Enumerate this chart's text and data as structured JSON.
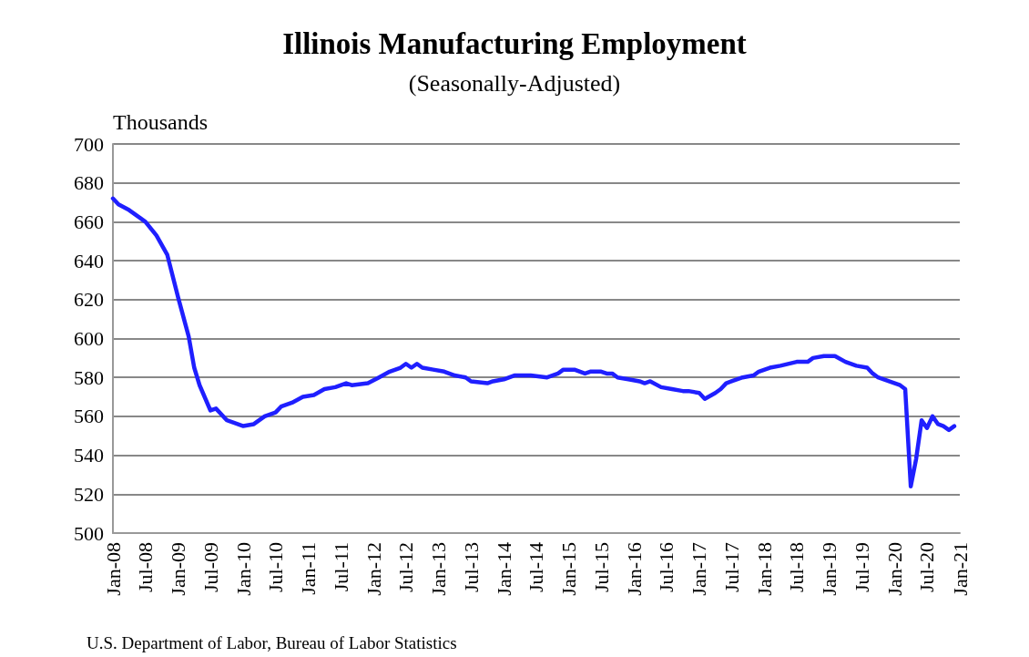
{
  "chart_data": {
    "type": "line",
    "title": "Illinois Manufacturing Employment",
    "subtitle": "(Seasonally-Adjusted)",
    "ylabel": "Thousands",
    "annotations": [
      "U.S. Department of Labor, Bureau of Labor Statistics"
    ],
    "x": [
      "2008-01",
      "2008-02",
      "2008-04",
      "2008-06",
      "2008-07",
      "2008-09",
      "2008-11",
      "2009-01",
      "2009-03",
      "2009-04",
      "2009-05",
      "2009-07",
      "2009-08",
      "2009-10",
      "2010-01",
      "2010-03",
      "2010-05",
      "2010-07",
      "2010-08",
      "2010-10",
      "2010-12",
      "2011-02",
      "2011-04",
      "2011-06",
      "2011-08",
      "2011-09",
      "2011-12",
      "2012-02",
      "2012-04",
      "2012-06",
      "2012-07",
      "2012-08",
      "2012-09",
      "2012-10",
      "2012-12",
      "2013-02",
      "2013-04",
      "2013-06",
      "2013-07",
      "2013-10",
      "2013-11",
      "2014-01",
      "2014-03",
      "2014-06",
      "2014-09",
      "2014-11",
      "2014-12",
      "2015-02",
      "2015-04",
      "2015-05",
      "2015-07",
      "2015-08",
      "2015-09",
      "2015-10",
      "2015-12",
      "2016-02",
      "2016-03",
      "2016-04",
      "2016-06",
      "2016-08",
      "2016-10",
      "2016-11",
      "2017-01",
      "2017-02",
      "2017-04",
      "2017-05",
      "2017-06",
      "2017-07",
      "2017-09",
      "2017-11",
      "2017-12",
      "2018-02",
      "2018-04",
      "2018-07",
      "2018-09",
      "2018-10",
      "2018-12",
      "2019-02",
      "2019-04",
      "2019-06",
      "2019-08",
      "2019-09",
      "2019-10",
      "2019-12",
      "2020-02",
      "2020-03",
      "2020-04",
      "2020-05",
      "2020-06",
      "2020-07",
      "2020-08",
      "2020-09",
      "2020-10",
      "2020-11",
      "2020-12"
    ],
    "series": [
      {
        "color": "#1f1fff",
        "values": [
          672,
          669,
          666,
          662,
          660,
          653,
          643,
          621,
          601,
          585,
          576,
          563,
          564,
          558,
          555,
          556,
          560,
          562,
          565,
          567,
          570,
          571,
          574,
          575,
          577,
          576,
          577,
          580,
          583,
          585,
          587,
          585,
          587,
          585,
          584,
          583,
          581,
          580,
          578,
          577,
          578,
          579,
          581,
          581,
          580,
          582,
          584,
          584,
          582,
          583,
          583,
          582,
          582,
          580,
          579,
          578,
          577,
          578,
          575,
          574,
          573,
          573,
          572,
          569,
          572,
          574,
          577,
          578,
          580,
          581,
          583,
          585,
          586,
          588,
          588,
          590,
          591,
          591,
          588,
          586,
          585,
          582,
          580,
          578,
          576,
          574,
          524,
          538,
          558,
          554,
          560,
          556,
          555,
          553,
          555
        ]
      }
    ],
    "xlim": [
      "2008-01",
      "2021-01"
    ],
    "xticks": [
      {
        "value": "2008-01",
        "label": "Jan-08"
      },
      {
        "value": "2008-07",
        "label": "Jul-08"
      },
      {
        "value": "2009-01",
        "label": "Jan-09"
      },
      {
        "value": "2009-07",
        "label": "Jul-09"
      },
      {
        "value": "2010-01",
        "label": "Jan-10"
      },
      {
        "value": "2010-07",
        "label": "Jul-10"
      },
      {
        "value": "2011-01",
        "label": "Jan-11"
      },
      {
        "value": "2011-07",
        "label": "Jul-11"
      },
      {
        "value": "2012-01",
        "label": "Jan-12"
      },
      {
        "value": "2012-07",
        "label": "Jul-12"
      },
      {
        "value": "2013-01",
        "label": "Jan-13"
      },
      {
        "value": "2013-07",
        "label": "Jul-13"
      },
      {
        "value": "2014-01",
        "label": "Jan-14"
      },
      {
        "value": "2014-07",
        "label": "Jul-14"
      },
      {
        "value": "2015-01",
        "label": "Jan-15"
      },
      {
        "value": "2015-07",
        "label": "Jul-15"
      },
      {
        "value": "2016-01",
        "label": "Jan-16"
      },
      {
        "value": "2016-07",
        "label": "Jul-16"
      },
      {
        "value": "2017-01",
        "label": "Jan-17"
      },
      {
        "value": "2017-07",
        "label": "Jul-17"
      },
      {
        "value": "2018-01",
        "label": "Jan-18"
      },
      {
        "value": "2018-07",
        "label": "Jul-18"
      },
      {
        "value": "2019-01",
        "label": "Jan-19"
      },
      {
        "value": "2019-07",
        "label": "Jul-19"
      },
      {
        "value": "2020-01",
        "label": "Jan-20"
      },
      {
        "value": "2020-07",
        "label": "Jul-20"
      },
      {
        "value": "2021-01",
        "label": "Jan-21"
      }
    ],
    "ylim": [
      500,
      700
    ],
    "yticks": [
      500,
      520,
      540,
      560,
      580,
      600,
      620,
      640,
      660,
      680,
      700
    ],
    "grid": "y",
    "marker": "none",
    "line_style": "solid"
  }
}
